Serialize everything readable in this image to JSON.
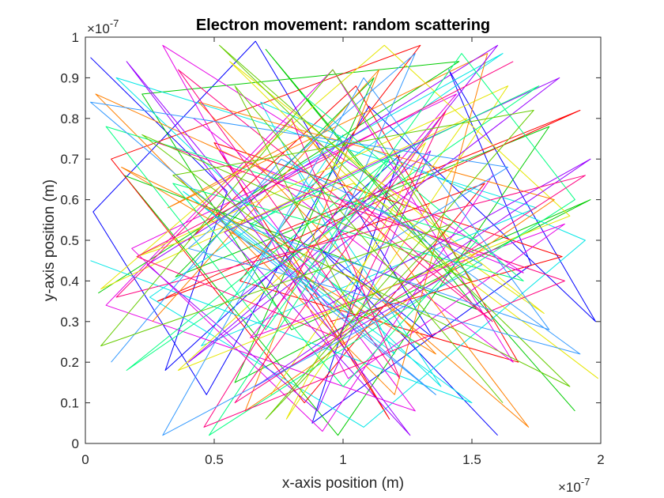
{
  "chart_data": {
    "type": "line",
    "title": "Electron movement: random scattering",
    "xlabel": "x-axis position (m)",
    "ylabel": "y-axis position (m)",
    "xlim": [
      0,
      2e-07
    ],
    "ylim": [
      0,
      1e-07
    ],
    "x_ticks": [
      0,
      0.5,
      1,
      1.5,
      2
    ],
    "x_tick_labels": [
      "0",
      "0.5",
      "1",
      "1.5",
      "2"
    ],
    "y_ticks": [
      0,
      0.1,
      0.2,
      0.3,
      0.4,
      0.5,
      0.6,
      0.7,
      0.8,
      0.9,
      1
    ],
    "y_tick_labels": [
      "0",
      "0.1",
      "0.2",
      "0.3",
      "0.4",
      "0.5",
      "0.6",
      "0.7",
      "0.8",
      "0.9",
      "1"
    ],
    "x_exponent": {
      "base": "×10",
      "power": "-7"
    },
    "y_exponent": {
      "base": "×10",
      "power": "-7"
    },
    "grid": false,
    "box": true,
    "series_colors": [
      "#0000ff",
      "#00cc00",
      "#ff0000",
      "#00e6e6",
      "#e600e6",
      "#e6e600",
      "#ff8000",
      "#9900ff",
      "#00ff80",
      "#ff007f",
      "#3399ff",
      "#66cc00"
    ],
    "series": [
      {
        "x": [
          0.02,
          0.55,
          0.31,
          1.22,
          0.88,
          1.73,
          1.41,
          1.98,
          1.1,
          0.47,
          0.03,
          0.66,
          1.35,
          0.91,
          1.6
        ],
        "y": [
          0.95,
          0.62,
          0.18,
          0.71,
          0.05,
          0.44,
          0.92,
          0.3,
          0.83,
          0.12,
          0.57,
          0.99,
          0.26,
          0.48,
          0.02
        ]
      },
      {
        "x": [
          1.9,
          1.25,
          0.7,
          1.52,
          0.15,
          0.98,
          1.8,
          0.35,
          1.12,
          0.58,
          1.96,
          0.8,
          0.22,
          1.45,
          0.05
        ],
        "y": [
          0.08,
          0.55,
          0.97,
          0.33,
          0.66,
          0.02,
          0.78,
          0.41,
          0.9,
          0.15,
          0.6,
          0.28,
          0.86,
          0.94,
          0.37
        ]
      },
      {
        "x": [
          0.4,
          1.05,
          1.68,
          0.6,
          1.3,
          0.1,
          0.85,
          1.55,
          0.28,
          1.92,
          0.75,
          1.18,
          0.5,
          1.85,
          0.95
        ],
        "y": [
          0.5,
          0.88,
          0.2,
          0.4,
          0.98,
          0.7,
          0.1,
          0.64,
          0.35,
          0.82,
          0.52,
          0.06,
          0.74,
          0.46,
          0.3
        ]
      },
      {
        "x": [
          1.0,
          0.45,
          1.75,
          0.12,
          1.38,
          0.82,
          1.62,
          0.25,
          1.08,
          1.94,
          0.68,
          1.2,
          0.38,
          1.5,
          0.02
        ],
        "y": [
          0.76,
          0.24,
          0.58,
          0.9,
          0.14,
          0.68,
          0.96,
          0.36,
          0.04,
          0.5,
          0.84,
          0.22,
          0.62,
          0.1,
          0.45
        ]
      },
      {
        "x": [
          1.58,
          0.92,
          0.18,
          1.44,
          0.64,
          1.86,
          1.02,
          0.3,
          1.7,
          0.52,
          1.28,
          0.08,
          0.96,
          1.66,
          0.42
        ],
        "y": [
          0.66,
          0.03,
          0.48,
          0.86,
          0.26,
          0.54,
          0.16,
          0.98,
          0.42,
          0.72,
          0.08,
          0.34,
          0.92,
          0.2,
          0.8
        ]
      },
      {
        "x": [
          0.72,
          1.48,
          0.06,
          1.16,
          1.88,
          0.36,
          1.32,
          0.78,
          1.64,
          0.2,
          1.04,
          1.78,
          0.56,
          1.24,
          1.99
        ],
        "y": [
          0.12,
          0.8,
          0.38,
          0.98,
          0.56,
          0.18,
          0.74,
          0.06,
          0.88,
          0.46,
          0.64,
          0.32,
          0.94,
          0.52,
          0.16
        ]
      },
      {
        "x": [
          0.26,
          1.14,
          0.62,
          1.82,
          0.44,
          1.36,
          0.14,
          1.06,
          1.72,
          0.86,
          0.32,
          1.56,
          1.2,
          0.04,
          0.74
        ],
        "y": [
          0.3,
          0.92,
          0.08,
          0.6,
          0.84,
          0.22,
          0.68,
          0.4,
          0.04,
          0.76,
          0.58,
          0.96,
          0.12,
          0.86,
          0.66
        ]
      },
      {
        "x": [
          1.42,
          0.66,
          1.96,
          0.94,
          0.16,
          1.26,
          0.54,
          1.84,
          0.4,
          1.1,
          1.6,
          0.24,
          0.9,
          1.34,
          0.6
        ],
        "y": [
          0.42,
          0.14,
          0.7,
          0.34,
          0.94,
          0.02,
          0.52,
          0.9,
          0.2,
          0.58,
          0.98,
          0.44,
          0.08,
          0.72,
          0.36
        ]
      },
      {
        "x": [
          0.84,
          1.7,
          0.34,
          1.0,
          1.52,
          0.08,
          0.7,
          1.46,
          1.9,
          0.48,
          1.18,
          0.16,
          1.76,
          0.64,
          1.3
        ],
        "y": [
          0.86,
          0.4,
          0.64,
          0.14,
          0.5,
          0.78,
          0.28,
          0.96,
          0.6,
          0.02,
          0.7,
          0.18,
          0.88,
          0.54,
          0.24
        ]
      },
      {
        "x": [
          1.66,
          0.2,
          0.98,
          1.4,
          0.58,
          1.94,
          0.12,
          0.8,
          1.22,
          0.36,
          1.58,
          1.02,
          0.46,
          1.86,
          0.28
        ],
        "y": [
          0.94,
          0.46,
          0.26,
          0.82,
          0.1,
          0.66,
          0.36,
          0.8,
          0.16,
          0.92,
          0.3,
          0.62,
          0.04,
          0.4,
          0.74
        ]
      },
      {
        "x": [
          0.1,
          0.76,
          1.54,
          0.3,
          1.08,
          1.8,
          0.5,
          1.36,
          0.02,
          1.64,
          0.88,
          1.28,
          0.4,
          1.92,
          1.14
        ],
        "y": [
          0.2,
          0.7,
          0.44,
          0.02,
          0.9,
          0.28,
          0.56,
          0.12,
          0.84,
          0.68,
          0.38,
          0.96,
          0.48,
          0.22,
          0.58
        ]
      },
      {
        "x": [
          1.24,
          0.52,
          1.88,
          0.8,
          0.22,
          1.5,
          0.96,
          0.06,
          1.42,
          0.7,
          1.74,
          0.34,
          1.04,
          0.58,
          1.62
        ],
        "y": [
          0.58,
          0.98,
          0.14,
          0.48,
          0.76,
          0.4,
          0.92,
          0.24,
          0.54,
          0.06,
          0.82,
          0.66,
          0.32,
          0.88,
          0.1
        ]
      }
    ]
  }
}
